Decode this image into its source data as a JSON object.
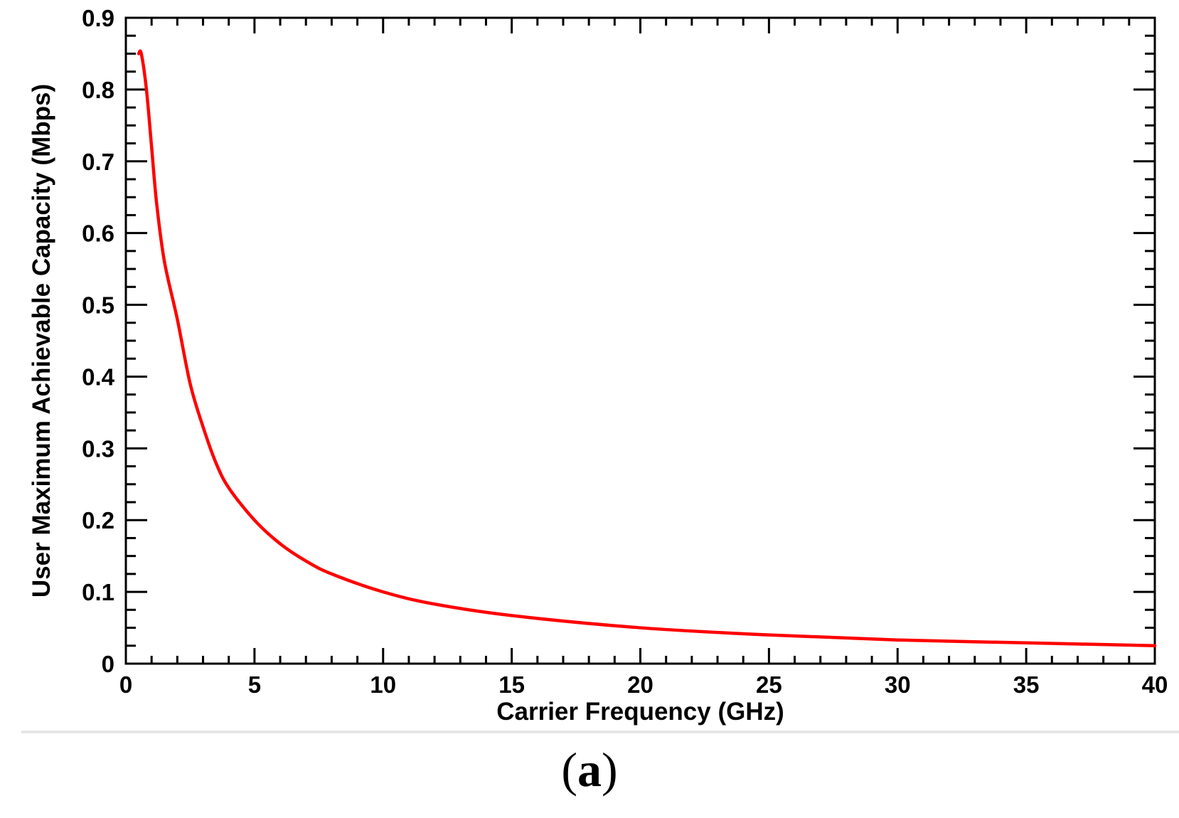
{
  "chart_data": {
    "type": "line",
    "title": "",
    "xlabel": "Carrier Frequency (GHz)",
    "ylabel": "User Maximum Achievable Capacity (Mbps)",
    "xlim": [
      0,
      40
    ],
    "ylim": [
      0,
      0.9
    ],
    "xticks": [
      0,
      5,
      10,
      15,
      20,
      25,
      30,
      35,
      40
    ],
    "xtick_labels": [
      "0",
      "5",
      "10",
      "15",
      "20",
      "25",
      "30",
      "35",
      "40"
    ],
    "yticks": [
      0,
      0.1,
      0.2,
      0.3,
      0.4,
      0.5,
      0.6,
      0.7,
      0.8,
      0.9
    ],
    "ytick_labels": [
      "0",
      "0.1",
      "0.2",
      "0.3",
      "0.4",
      "0.5",
      "0.6",
      "0.7",
      "0.8",
      "0.9"
    ],
    "grid": false,
    "legend": "none",
    "series": [
      {
        "color": "#ff0000",
        "x": [
          0.5,
          0.6,
          0.8,
          1.0,
          1.2,
          1.5,
          2,
          2.5,
          3,
          3.5,
          4,
          5,
          6,
          7,
          8,
          10,
          12,
          15,
          20,
          25,
          30,
          35,
          40
        ],
        "y": [
          0.85,
          0.85,
          0.8,
          0.72,
          0.64,
          0.56,
          0.48,
          0.39,
          0.33,
          0.28,
          0.245,
          0.2,
          0.167,
          0.143,
          0.125,
          0.1,
          0.083,
          0.067,
          0.05,
          0.04,
          0.033,
          0.029,
          0.025
        ]
      }
    ]
  },
  "panel_label": {
    "open": "(",
    "letter": "a",
    "close": ")"
  }
}
